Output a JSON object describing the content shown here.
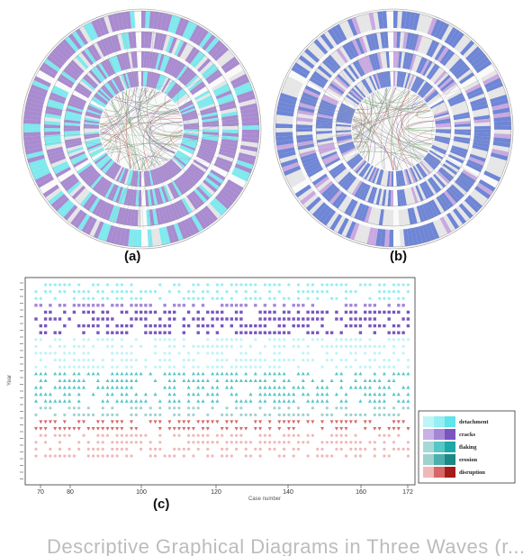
{
  "figure": {
    "panel_labels": [
      "(a)",
      "(b)",
      "(c)"
    ],
    "caption_partial": "Descriptive Graphical Diagrams in Three Waves (r..."
  },
  "colors": {
    "purple": "#a98bd0",
    "cyan": "#7fe9ee",
    "blue": "#6f86d6",
    "light_gray": "#e6e6e6",
    "link_green": "#5f9a5a",
    "link_red": "#c0504d",
    "link_purple": "#7a5aa0"
  },
  "chart_data": {
    "type": "scatter",
    "title": "",
    "xlabel": "Case number",
    "ylabel": "Year",
    "x_ticks": [
      "70",
      "80",
      "100",
      "120",
      "140",
      "160",
      "172"
    ],
    "legend": [
      {
        "name": "detachment",
        "colors": [
          "#bff4f7",
          "#95eef2",
          "#5fe4ea"
        ]
      },
      {
        "name": "cracks",
        "colors": [
          "#c7b1e6",
          "#a487d4",
          "#7a55bf"
        ]
      },
      {
        "name": "flaking",
        "colors": [
          "#a7d8d8",
          "#57c6c6",
          "#1ea8a8"
        ]
      },
      {
        "name": "erosion",
        "colors": [
          "#9fd1cf",
          "#4bb0ad",
          "#1d8985"
        ]
      },
      {
        "name": "disruption",
        "colors": [
          "#f0b8b8",
          "#d66767",
          "#a51c1c"
        ]
      }
    ]
  }
}
